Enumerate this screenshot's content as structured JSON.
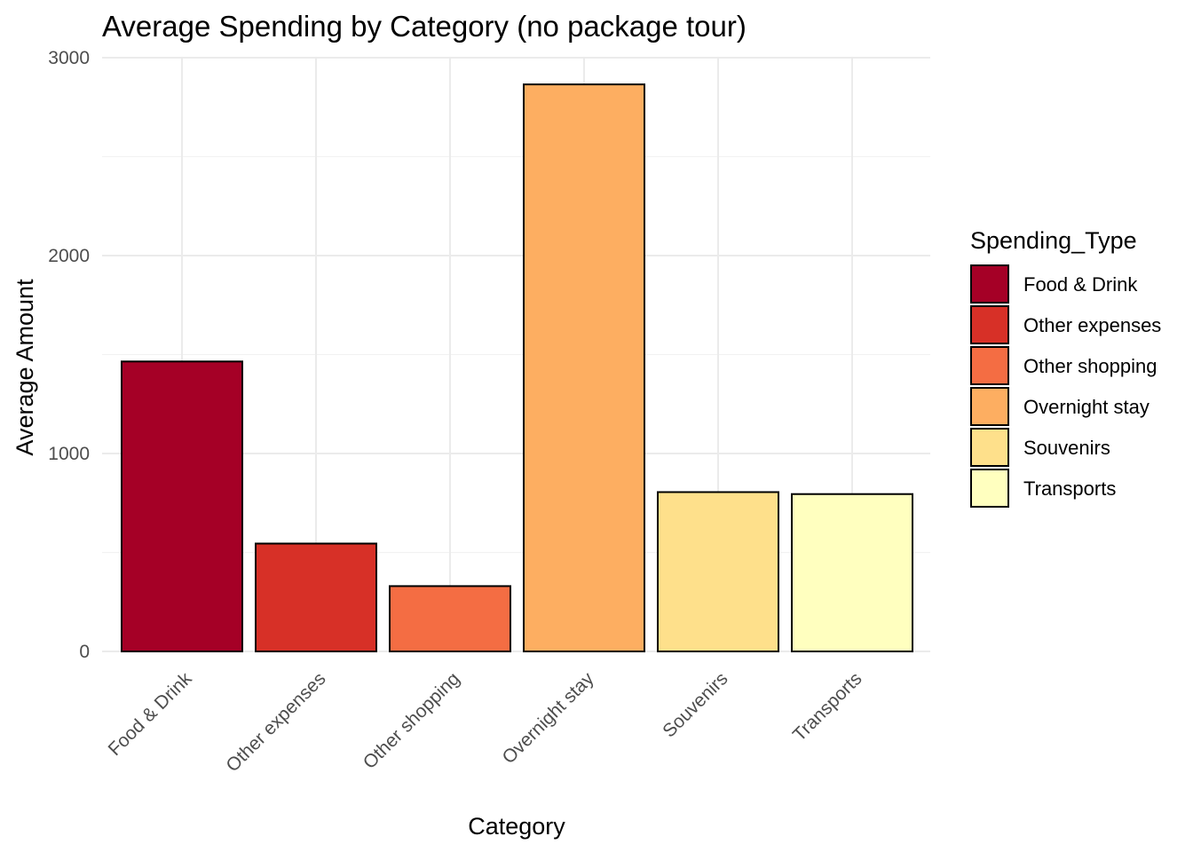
{
  "chart_data": {
    "type": "bar",
    "title": "Average Spending by Category (no package tour)",
    "xlabel": "Category",
    "ylabel": "Average Amount",
    "categories": [
      "Food & Drink",
      "Other expenses",
      "Other shopping",
      "Overnight stay",
      "Souvenirs",
      "Transports"
    ],
    "values": [
      1465,
      545,
      330,
      2865,
      805,
      795
    ],
    "colors": [
      "#a50026",
      "#d73027",
      "#f46d43",
      "#fdae61",
      "#fee08b",
      "#ffffbf"
    ],
    "ylim": [
      0,
      3000
    ],
    "yticks": [
      0,
      1000,
      2000,
      3000
    ],
    "ytick_labels": [
      "0",
      "1000",
      "2000",
      "3000"
    ],
    "grid": true,
    "legend": {
      "title": "Spending_Type",
      "position": "right",
      "entries": [
        "Food & Drink",
        "Other expenses",
        "Other shopping",
        "Overnight stay",
        "Souvenirs",
        "Transports"
      ]
    }
  }
}
